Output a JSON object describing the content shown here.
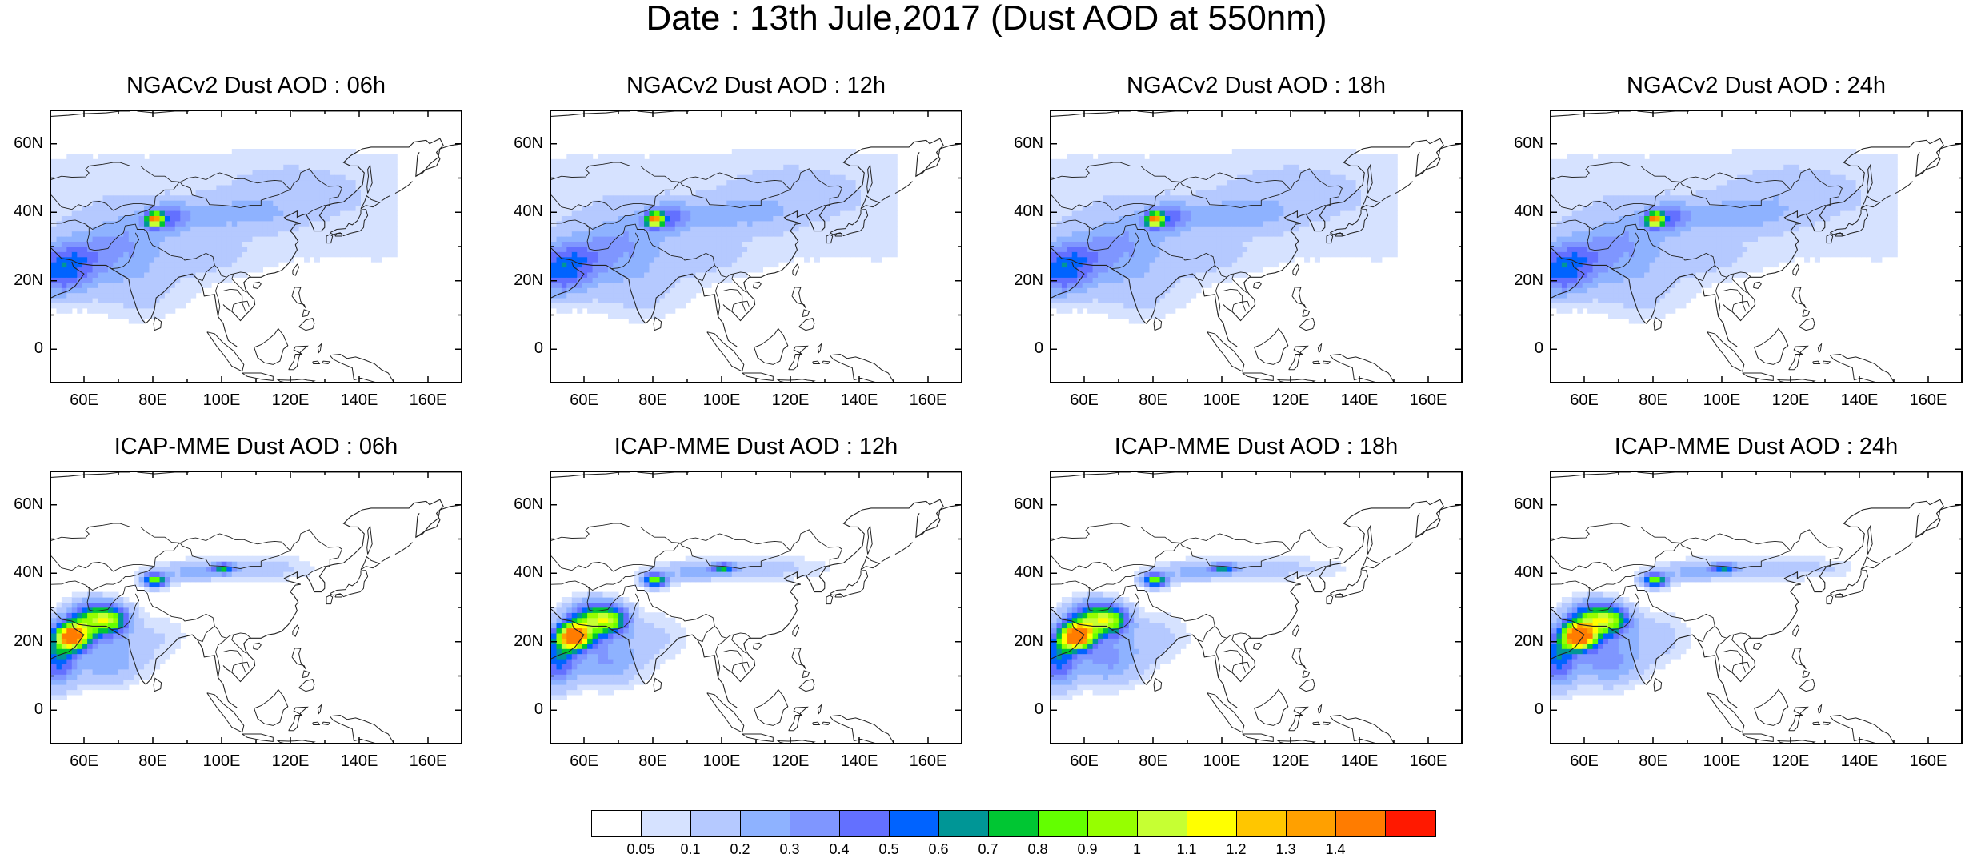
{
  "title": "Date : 13th Jule,2017 (Dust AOD at 550nm)",
  "panels": [
    {
      "title": "NGACv2 Dust AOD : 06h",
      "model": "NGAC",
      "hour": 6
    },
    {
      "title": "NGACv2 Dust AOD : 12h",
      "model": "NGAC",
      "hour": 12
    },
    {
      "title": "NGACv2 Dust AOD : 18h",
      "model": "NGAC",
      "hour": 18
    },
    {
      "title": "NGACv2 Dust AOD : 24h",
      "model": "NGAC",
      "hour": 24
    },
    {
      "title": "ICAP-MME Dust AOD : 06h",
      "model": "ICAP",
      "hour": 6
    },
    {
      "title": "ICAP-MME Dust AOD : 12h",
      "model": "ICAP",
      "hour": 12
    },
    {
      "title": "ICAP-MME Dust AOD : 18h",
      "model": "ICAP",
      "hour": 18
    },
    {
      "title": "ICAP-MME Dust AOD : 24h",
      "model": "ICAP",
      "hour": 24
    }
  ],
  "lat_labels": [
    "60N",
    "40N",
    "20N",
    "0"
  ],
  "lon_labels": [
    "60E",
    "80E",
    "100E",
    "120E",
    "140E",
    "160E"
  ],
  "extent": {
    "lon": [
      50,
      170
    ],
    "lat": [
      -10,
      70
    ]
  },
  "colorbar": {
    "labels": [
      "0.05",
      "0.1",
      "0.2",
      "0.3",
      "0.4",
      "0.5",
      "0.6",
      "0.7",
      "0.8",
      "0.9",
      "1",
      "1.1",
      "1.2",
      "1.3",
      "1.4"
    ],
    "colors": [
      "#ffffff",
      "#d6e2ff",
      "#b5c9ff",
      "#8eb2ff",
      "#7f96ff",
      "#6370ff",
      "#0063ff",
      "#009696",
      "#00c633",
      "#63ff00",
      "#96ff00",
      "#c6ff33",
      "#ffff00",
      "#ffc600",
      "#ffa000",
      "#ff7c00",
      "#ff1900"
    ]
  }
}
